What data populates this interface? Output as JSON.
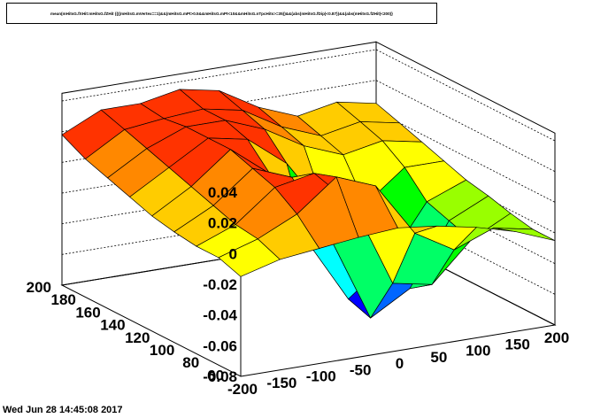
{
  "title": "mean(mHitsG.fXHit:mHitsG.fZHit {(((mHitsG.mVertex==1)&&(mHitsG.mPt>0.5&&mHitsG.mPt<10&&mHitsG.nTpcHits>=35))&&(abs(mHitsG.fDip)<0.87))&&(abs(mHitsG.fZHit)<200)}",
  "footer": "Wed Jun 28 14:45:08 2017",
  "colors": {
    "palette": [
      "#0000ff",
      "#0066ff",
      "#00ffff",
      "#00ff66",
      "#00ff00",
      "#99ff00",
      "#ffff00",
      "#ffcc00",
      "#ff8800",
      "#ff3300"
    ]
  },
  "chart_data": {
    "type": "surface",
    "title": "mean(mHitsG.fXHit:mHitsG.fZHit {(((mHitsG.mVertex==1)&&(mHitsG.mPt>0.5&&mHitsG.mPt<10&&mHitsG.nTpcHits>=35))&&(abs(mHitsG.fDip)<0.87))&&(abs(mHitsG.fZHit)<200)}",
    "x_ticks": [
      "-200",
      "-150",
      "-100",
      "-50",
      "0",
      "50",
      "100",
      "150",
      "200"
    ],
    "y_ticks": [
      "60",
      "80",
      "100",
      "120",
      "140",
      "160",
      "180",
      "200"
    ],
    "z_ticks": [
      "-0.08",
      "-0.06",
      "-0.04",
      "-0.02",
      "0",
      "0.02",
      "0.04"
    ],
    "xlim": [
      -200,
      200
    ],
    "ylim": [
      55,
      200
    ],
    "zlim": [
      -0.08,
      0.045
    ],
    "x": [
      -200,
      -150,
      -100,
      -50,
      0,
      50,
      100,
      150,
      200
    ],
    "y": [
      55,
      73,
      91,
      109,
      127,
      145,
      163,
      181,
      200
    ],
    "z": [
      [
        -0.015,
        -0.008,
        -0.005,
        -0.002,
        0.0,
        -0.003,
        -0.008,
        -0.015,
        -0.025
      ],
      [
        -0.01,
        -0.002,
        0.01,
        0.03,
        0.02,
        -0.015,
        -0.03,
        -0.02,
        -0.025
      ],
      [
        -0.01,
        0.0,
        0.02,
        0.025,
        0.0,
        -0.055,
        -0.06,
        -0.035,
        -0.022
      ],
      [
        -0.008,
        0.005,
        0.025,
        0.015,
        -0.03,
        -0.085,
        -0.07,
        -0.03,
        -0.018
      ],
      [
        -0.005,
        0.01,
        0.03,
        0.01,
        -0.04,
        -0.08,
        -0.06,
        -0.025,
        -0.015
      ],
      [
        0.0,
        0.015,
        0.03,
        0.025,
        0.005,
        -0.03,
        -0.03,
        -0.01,
        -0.01
      ],
      [
        0.005,
        0.02,
        0.03,
        0.03,
        0.02,
        0.005,
        -0.005,
        0.0,
        -0.005
      ],
      [
        0.01,
        0.025,
        0.028,
        0.03,
        0.025,
        0.01,
        0.0,
        0.005,
        0.0
      ],
      [
        0.018,
        0.03,
        0.03,
        0.035,
        0.03,
        0.015,
        0.005,
        0.01,
        0.005
      ]
    ]
  }
}
